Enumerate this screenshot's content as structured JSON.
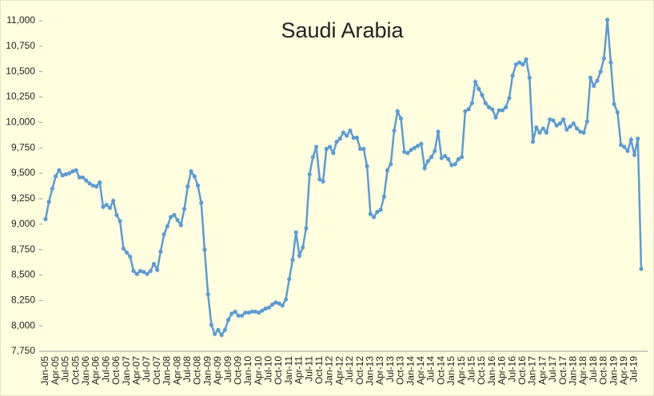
{
  "chart_data": {
    "type": "line",
    "title": "Saudi Arabia",
    "categories": [
      "Jan-05",
      null,
      null,
      "Apr-05",
      null,
      null,
      "Jul-05",
      null,
      null,
      "Oct-05",
      null,
      null,
      "Jan-06",
      null,
      null,
      "Apr-06",
      null,
      null,
      "Jul-06",
      null,
      null,
      "Oct-06",
      null,
      null,
      "Jan-07",
      null,
      null,
      "Apr-07",
      null,
      null,
      "Jul-07",
      null,
      null,
      "Oct-07",
      null,
      null,
      "Jan-08",
      null,
      null,
      "Apr-08",
      null,
      null,
      "Jul-08",
      null,
      null,
      "Oct-08",
      null,
      null,
      "Jan-09",
      null,
      null,
      "Apr-09",
      null,
      null,
      "Jul-09",
      null,
      null,
      "Oct-09",
      null,
      null,
      "Jan-10",
      null,
      null,
      "Apr-10",
      null,
      null,
      "Jul-10",
      null,
      null,
      "Oct-10",
      null,
      null,
      "Jan-11",
      null,
      null,
      "Apr-11",
      null,
      null,
      "Jul-11",
      null,
      null,
      "Oct-11",
      null,
      null,
      "Jan-12",
      null,
      null,
      "Apr-12",
      null,
      null,
      "Jul-12",
      null,
      null,
      "Oct-12",
      null,
      null,
      "Jan-13",
      null,
      null,
      "Apr-13",
      null,
      null,
      "Jul-13",
      null,
      null,
      "Oct-13",
      null,
      null,
      "Jan-14",
      null,
      null,
      "Apr-14",
      null,
      null,
      "Jul-14",
      null,
      null,
      "Oct-14",
      null,
      null,
      "Jan-15",
      null,
      null,
      "Apr-15",
      null,
      null,
      "Jul-15",
      null,
      null,
      "Oct-15",
      null,
      null,
      "Jan-16",
      null,
      null,
      "Apr-16",
      null,
      null,
      "Jul-16",
      null,
      null,
      "Oct-16",
      null,
      null,
      "Jan-17",
      null,
      null,
      "Apr-17",
      null,
      null,
      "Jul-17",
      null,
      null,
      "Oct-17",
      null,
      null,
      "Jan-18",
      null,
      null,
      "Apr-18",
      null,
      null,
      "Jul-18",
      null,
      null,
      "Oct-18",
      null,
      null,
      "Jan-19",
      null,
      null,
      "Apr-19",
      null,
      null,
      "Jul-19",
      null,
      null
    ],
    "series": [
      {
        "color": "#5b9bd5",
        "values": [
          9050,
          9220,
          9350,
          9470,
          9530,
          9480,
          9490,
          9500,
          9520,
          9530,
          9460,
          9460,
          9430,
          9400,
          9380,
          9370,
          9410,
          9170,
          9190,
          9160,
          9230,
          9090,
          9030,
          8760,
          8720,
          8680,
          8540,
          8510,
          8540,
          8530,
          8510,
          8540,
          8610,
          8550,
          8730,
          8900,
          8980,
          9070,
          9090,
          9040,
          8990,
          9150,
          9370,
          9520,
          9470,
          9380,
          9210,
          8750,
          8310,
          8010,
          7920,
          7960,
          7910,
          7960,
          8060,
          8120,
          8140,
          8100,
          8100,
          8130,
          8130,
          8140,
          8140,
          8130,
          8150,
          8170,
          8180,
          8210,
          8230,
          8220,
          8200,
          8260,
          8460,
          8650,
          8920,
          8690,
          8770,
          8960,
          9490,
          9660,
          9760,
          9440,
          9420,
          9740,
          9760,
          9700,
          9810,
          9840,
          9900,
          9870,
          9920,
          9850,
          9850,
          9740,
          9740,
          9570,
          9100,
          9070,
          9120,
          9140,
          9270,
          9530,
          9590,
          9920,
          10110,
          10040,
          9710,
          9700,
          9730,
          9750,
          9770,
          9790,
          9550,
          9620,
          9660,
          9720,
          9910,
          9650,
          9670,
          9640,
          9580,
          9590,
          9640,
          9660,
          10110,
          10130,
          10190,
          10400,
          10330,
          10270,
          10190,
          10150,
          10130,
          10050,
          10120,
          10120,
          10150,
          10240,
          10460,
          10570,
          10590,
          10570,
          10620,
          10440,
          9810,
          9950,
          9900,
          9940,
          9900,
          10030,
          10020,
          9970,
          9990,
          10030,
          9930,
          9960,
          9990,
          9940,
          9910,
          9900,
          10010,
          10440,
          10360,
          10410,
          10500,
          10630,
          11010,
          10590,
          10180,
          10100,
          9780,
          9760,
          9720,
          9830,
          9680,
          9840,
          8560
        ]
      }
    ],
    "ylim": [
      7750,
      11000
    ],
    "yticks": [
      {
        "value": 7750,
        "label": "7,750"
      },
      {
        "value": 8000,
        "label": "8,000"
      },
      {
        "value": 8250,
        "label": "8,250"
      },
      {
        "value": 8500,
        "label": "8,500"
      },
      {
        "value": 8750,
        "label": "8,750"
      },
      {
        "value": 9000,
        "label": "9,000"
      },
      {
        "value": 9250,
        "label": "9,250"
      },
      {
        "value": 9500,
        "label": "9,500"
      },
      {
        "value": 9750,
        "label": "9,750"
      },
      {
        "value": 10000,
        "label": "10,000"
      },
      {
        "value": 10250,
        "label": "10,250"
      },
      {
        "value": 10500,
        "label": "10,500"
      },
      {
        "value": 10750,
        "label": "10,750"
      },
      {
        "value": 11000,
        "label": "11,000"
      }
    ],
    "grid": false
  }
}
